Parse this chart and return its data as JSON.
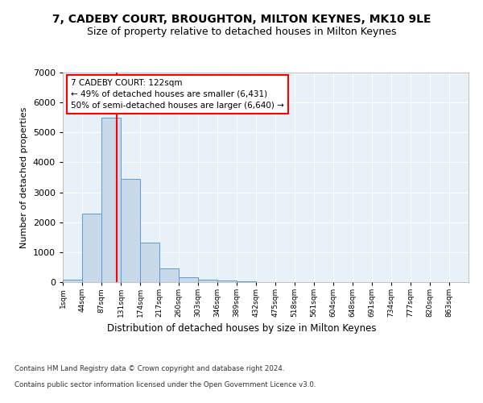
{
  "title": "7, CADEBY COURT, BROUGHTON, MILTON KEYNES, MK10 9LE",
  "subtitle": "Size of property relative to detached houses in Milton Keynes",
  "xlabel": "Distribution of detached houses by size in Milton Keynes",
  "ylabel": "Number of detached properties",
  "footer_line1": "Contains HM Land Registry data © Crown copyright and database right 2024.",
  "footer_line2": "Contains public sector information licensed under the Open Government Licence v3.0.",
  "bar_labels": [
    "1sqm",
    "44sqm",
    "87sqm",
    "131sqm",
    "174sqm",
    "217sqm",
    "260sqm",
    "303sqm",
    "346sqm",
    "389sqm",
    "432sqm",
    "475sqm",
    "518sqm",
    "561sqm",
    "604sqm",
    "648sqm",
    "691sqm",
    "734sqm",
    "777sqm",
    "820sqm",
    "863sqm"
  ],
  "bar_values": [
    80,
    2280,
    5480,
    3450,
    1310,
    470,
    155,
    85,
    50,
    25,
    0,
    0,
    0,
    0,
    0,
    0,
    0,
    0,
    0,
    0,
    0
  ],
  "bar_color": "#c8daea",
  "bar_edge_color": "#5b9bd5",
  "ylim": [
    0,
    7000
  ],
  "yticks": [
    0,
    1000,
    2000,
    3000,
    4000,
    5000,
    6000,
    7000
  ],
  "annotation_title": "7 CADEBY COURT: 122sqm",
  "annotation_line1": "← 49% of detached houses are smaller (6,431)",
  "annotation_line2": "50% of semi-detached houses are larger (6,640) →",
  "bg_color": "#ffffff",
  "plot_bg_color": "#e8f0f8",
  "grid_color": "#ffffff",
  "title_fontsize": 10,
  "subtitle_fontsize": 9
}
